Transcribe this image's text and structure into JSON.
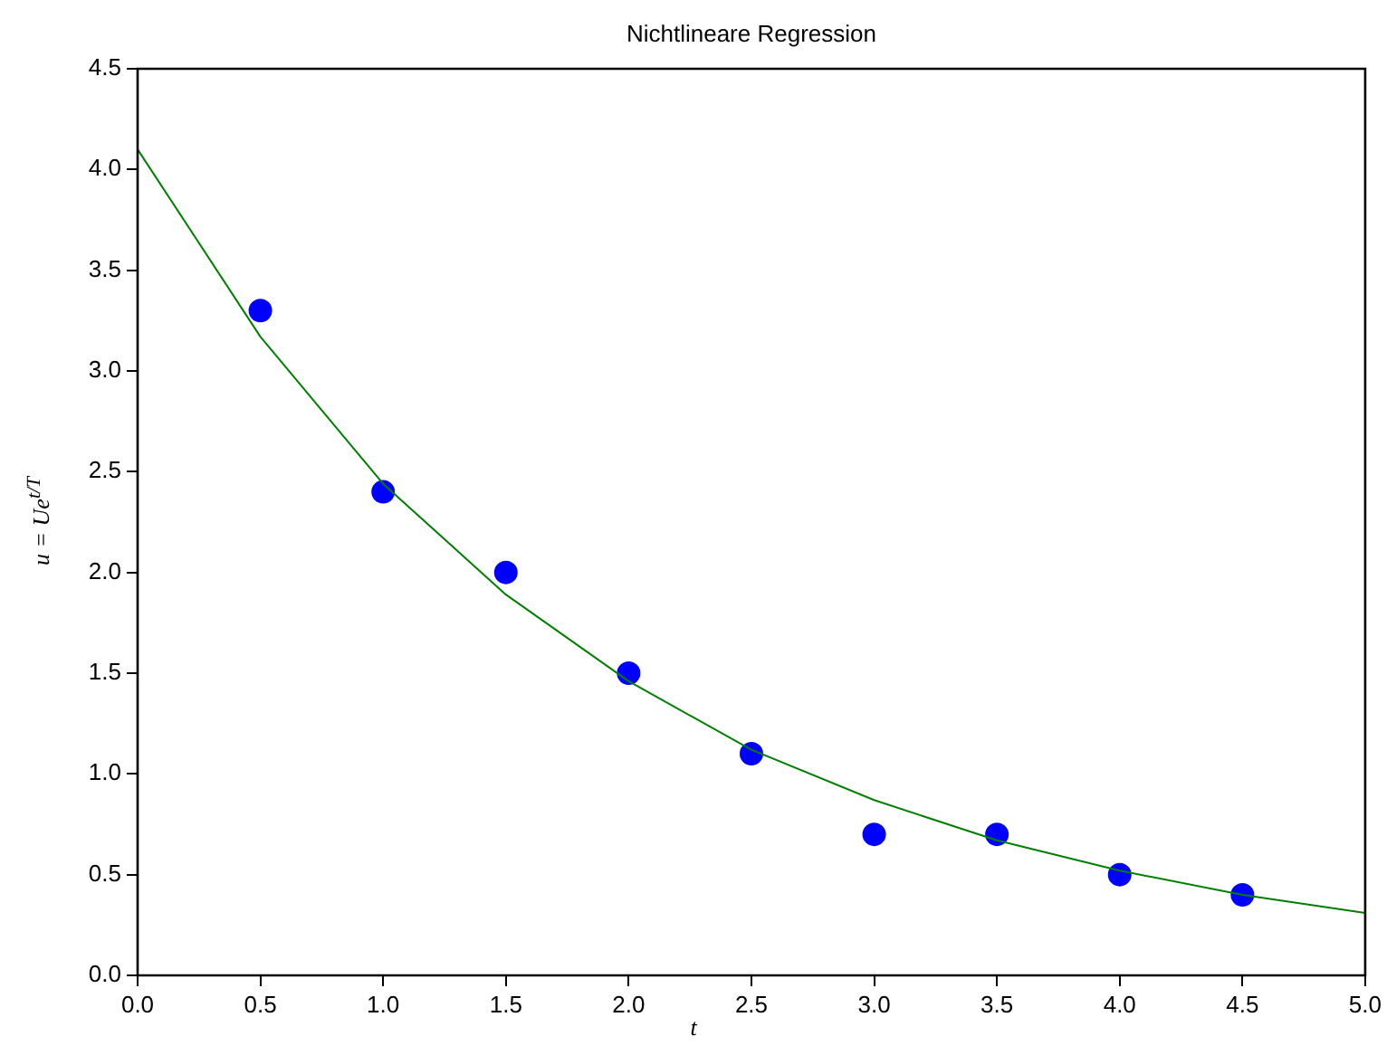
{
  "chart_data": {
    "type": "scatter",
    "title": "Nichtlineare Regression",
    "xlabel": "t",
    "ylabel": "u = Ue$^{t/T}$",
    "x": [
      0.5,
      1,
      1.5,
      2,
      2.5,
      3,
      3.5,
      4,
      4.5
    ],
    "series": [
      {
        "type": "scatter",
        "color": "#0000ff",
        "marker": "circle",
        "values": [
          3.3,
          2.4,
          2.0,
          1.5,
          1.1,
          0.7,
          0.7,
          0.5,
          0.4
        ]
      },
      {
        "type": "line",
        "color": "#008000",
        "marker": "none",
        "x": [
          0,
          0.5,
          1,
          1.5,
          2,
          2.5,
          3,
          3.5,
          4,
          4.5,
          5
        ],
        "values": [
          4.1,
          3.17,
          2.44,
          1.89,
          1.46,
          1.12,
          0.87,
          0.67,
          0.52,
          0.4,
          0.31
        ]
      }
    ],
    "xlim": [
      0,
      5
    ],
    "xticks": [
      {
        "value": 0,
        "label": "0.0"
      },
      {
        "value": 0.5,
        "label": "0.5"
      },
      {
        "value": 1,
        "label": "1.0"
      },
      {
        "value": 1.5,
        "label": "1.5"
      },
      {
        "value": 2,
        "label": "2.0"
      },
      {
        "value": 2.5,
        "label": "2.5"
      },
      {
        "value": 3,
        "label": "3.0"
      },
      {
        "value": 3.5,
        "label": "3.5"
      },
      {
        "value": 4,
        "label": "4.0"
      },
      {
        "value": 4.5,
        "label": "4.5"
      },
      {
        "value": 5,
        "label": "5.0"
      }
    ],
    "ylim": [
      0,
      4.5
    ],
    "yticks": [
      {
        "value": 0,
        "label": "0.0"
      },
      {
        "value": 0.5,
        "label": "0.5"
      },
      {
        "value": 1,
        "label": "1.0"
      },
      {
        "value": 1.5,
        "label": "1.5"
      },
      {
        "value": 2,
        "label": "2.0"
      },
      {
        "value": 2.5,
        "label": "2.5"
      },
      {
        "value": 3,
        "label": "3.0"
      },
      {
        "value": 3.5,
        "label": "3.5"
      },
      {
        "value": 4,
        "label": "4.0"
      },
      {
        "value": 4.5,
        "label": "4.5"
      }
    ],
    "grid": false,
    "legend": false
  }
}
